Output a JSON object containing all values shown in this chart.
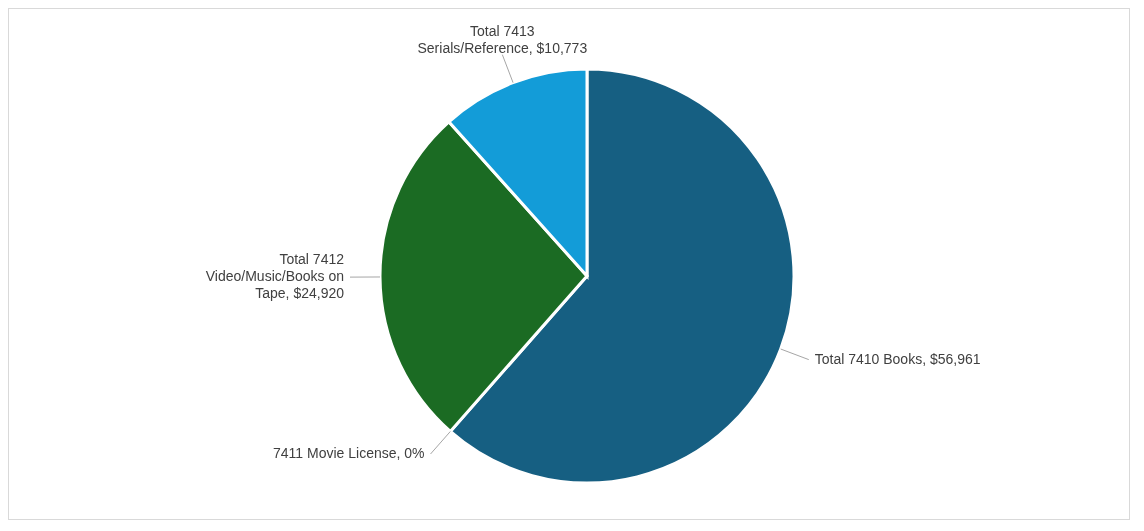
{
  "chart_data": {
    "type": "pie",
    "categories": [
      "Total 7410 Books",
      "7411 Movie License, 0%",
      "Total 7412 Video/Music/Books on Tape",
      "Total 7413 Serials/Reference"
    ],
    "values": [
      56961,
      0,
      24920,
      10773
    ],
    "value_labels": [
      "$56,961",
      null,
      "$24,920",
      "$10,773"
    ],
    "colors": [
      "#165f82",
      "#4a2a4a",
      "#1b6b23",
      "#139cd8"
    ]
  }
}
